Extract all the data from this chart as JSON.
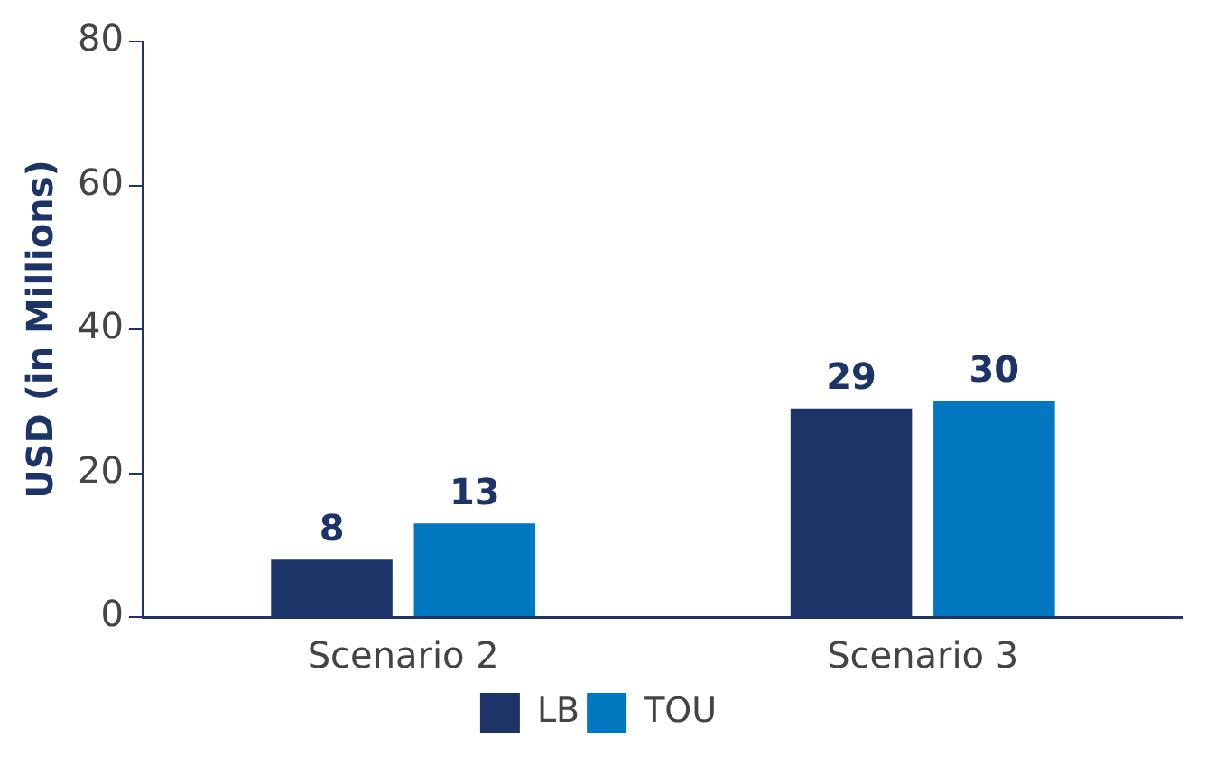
{
  "chart_data": {
    "type": "bar",
    "ylabel": "USD (in Millions)",
    "categories": [
      "Scenario 2",
      "Scenario 3"
    ],
    "series": [
      {
        "name": "LB",
        "color": "#1d3468",
        "values": [
          8,
          29
        ]
      },
      {
        "name": "TOU",
        "color": "#0077be",
        "values": [
          13,
          30
        ]
      }
    ],
    "ylim": [
      0,
      80
    ],
    "yticks": [
      0,
      20,
      40,
      60,
      80
    ],
    "grid": false,
    "legend": "bottom",
    "data_labels": true
  }
}
